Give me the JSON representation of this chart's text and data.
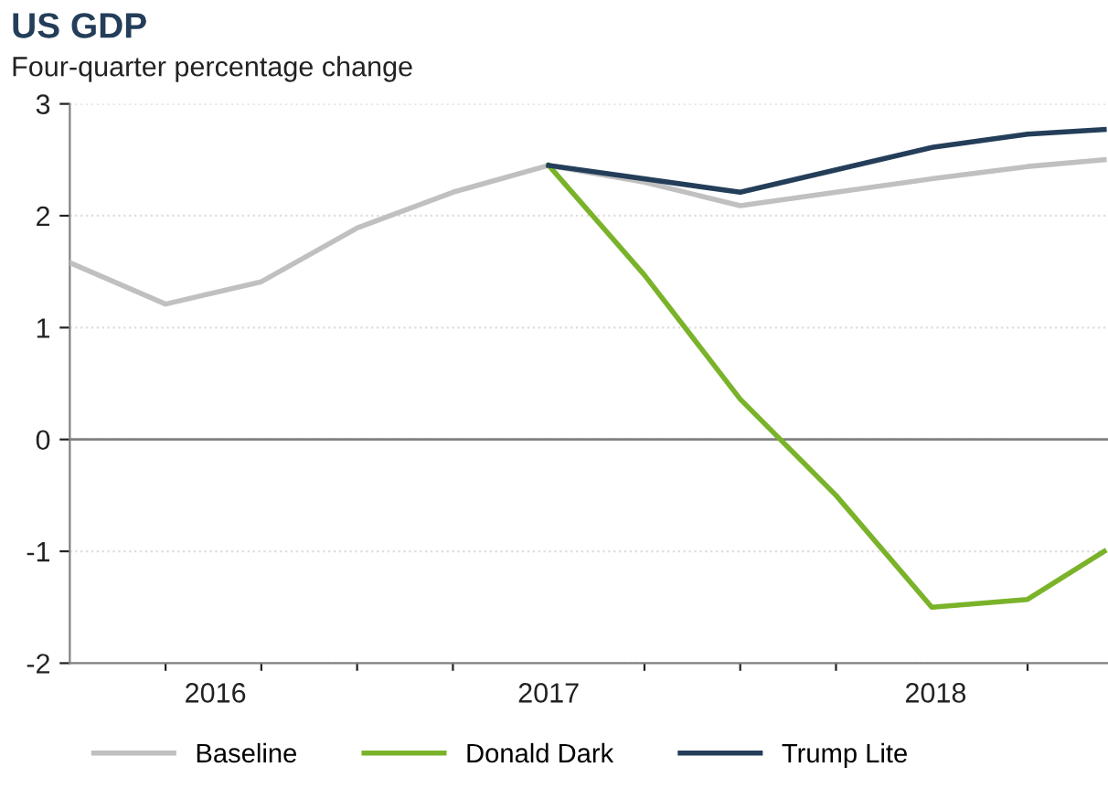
{
  "chart_data": {
    "type": "line",
    "title": "US GDP",
    "subtitle": "Four-quarter percentage change",
    "series": [
      {
        "name": "Baseline",
        "color": "#c0c0c0",
        "x": [
          2015.75,
          2016.0,
          2016.25,
          2016.5,
          2016.75,
          2017.0,
          2017.25,
          2017.5,
          2017.75,
          2018.0,
          2018.25,
          2018.45
        ],
        "values": [
          1.58,
          1.21,
          1.41,
          1.89,
          2.21,
          2.45,
          2.3,
          2.09,
          2.21,
          2.33,
          2.44,
          2.5
        ]
      },
      {
        "name": "Donald Dark",
        "color": "#7ab32a",
        "x": [
          2017.0,
          2017.25,
          2017.5,
          2017.75,
          2018.0,
          2018.25,
          2018.45
        ],
        "values": [
          2.45,
          1.47,
          0.36,
          -0.5,
          -1.5,
          -1.43,
          -1.0
        ]
      },
      {
        "name": "Trump Lite",
        "color": "#243e5a",
        "x": [
          2017.0,
          2017.5,
          2018.0,
          2018.25,
          2018.45
        ],
        "values": [
          2.45,
          2.21,
          2.61,
          2.73,
          2.77
        ]
      }
    ],
    "xlim": [
      2015.75,
      2018.46
    ],
    "xticks": [
      {
        "value": 2016.13,
        "label": "2016"
      },
      {
        "value": 2017.0,
        "label": "2017"
      },
      {
        "value": 2018.01,
        "label": "2018"
      },
      {
        "value": 2016.0,
        "label": null
      },
      {
        "value": 2016.25,
        "label": null
      },
      {
        "value": 2016.5,
        "label": null
      },
      {
        "value": 2016.75,
        "label": null
      },
      {
        "value": 2017.25,
        "label": null
      },
      {
        "value": 2017.5,
        "label": null
      },
      {
        "value": 2017.75,
        "label": null
      },
      {
        "value": 2018.25,
        "label": null
      }
    ],
    "ylim": [
      -2,
      3
    ],
    "yticks": [
      -2,
      -1,
      0,
      1,
      2,
      3
    ],
    "ref_lines": [
      {
        "axis": "y",
        "value": 0,
        "label": null,
        "color": "#808080"
      }
    ],
    "grid": "y",
    "legend": "bottom",
    "marker": "none",
    "line_style": "solid"
  }
}
